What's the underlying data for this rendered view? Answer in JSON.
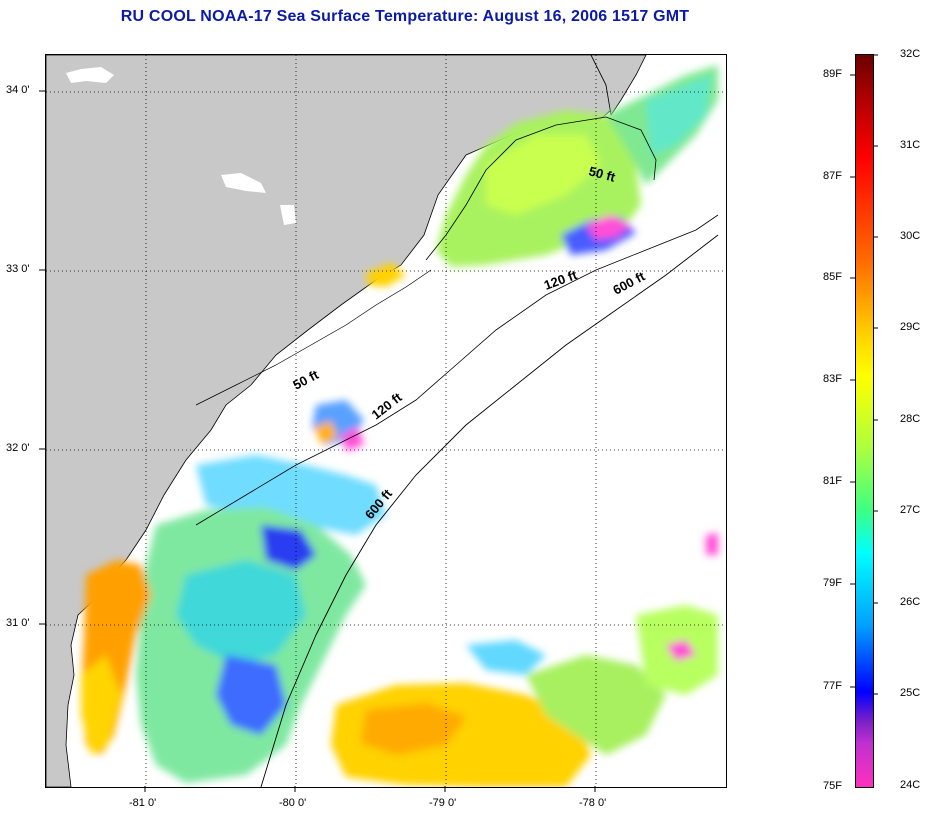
{
  "title": "RU COOL  NOAA-17  Sea Surface Temperature:  August 16, 2006 1517 GMT",
  "map": {
    "lon_ticks": [
      "-81 0'",
      "-80 0'",
      "-79 0'",
      "-78 0'"
    ],
    "lat_ticks": [
      "34 0'",
      "33 0'",
      "32 0'",
      "31 0'"
    ],
    "contours": [
      "50 ft",
      "120 ft",
      "600 ft",
      "50 ft",
      "120 ft",
      "600 ft"
    ],
    "colors": {
      "land": "#c8c8c8",
      "ocean_nodata": "#ffffff"
    }
  },
  "colorbar": {
    "f_labels": [
      "89F",
      "87F",
      "85F",
      "83F",
      "81F",
      "79F",
      "77F",
      "75F"
    ],
    "c_labels": [
      "32C",
      "31C",
      "30C",
      "29C",
      "28C",
      "27C",
      "26C",
      "25C",
      "24C"
    ],
    "range_c": [
      24,
      32
    ]
  }
}
